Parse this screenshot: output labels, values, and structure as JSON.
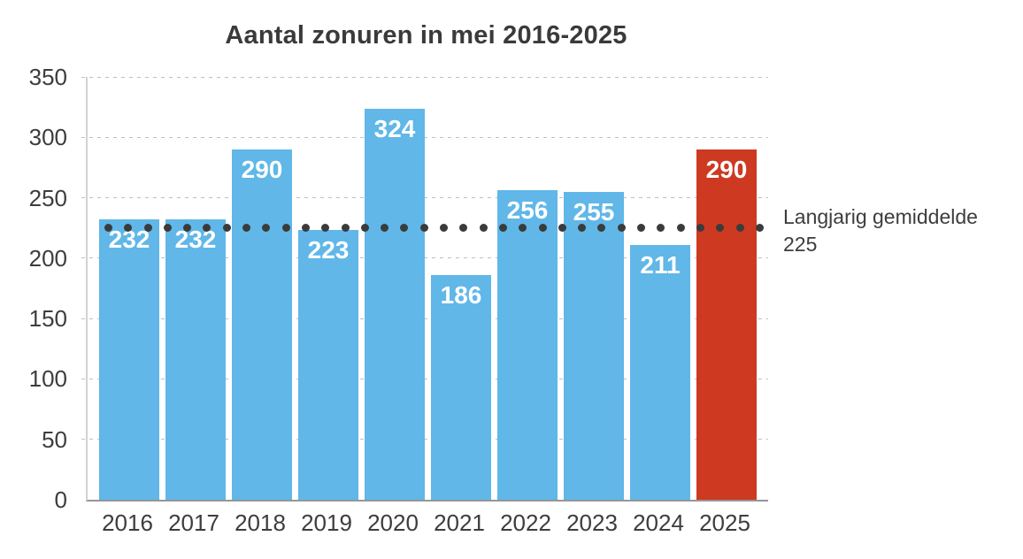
{
  "chart_data": {
    "type": "bar",
    "title": "Aantal zonuren in mei 2016-2025",
    "categories": [
      "2016",
      "2017",
      "2018",
      "2019",
      "2020",
      "2021",
      "2022",
      "2023",
      "2024",
      "2025"
    ],
    "values": [
      232,
      232,
      290,
      223,
      324,
      186,
      256,
      255,
      211,
      290
    ],
    "highlight_category": "2025",
    "yticks": [
      0,
      50,
      100,
      150,
      200,
      250,
      300,
      350
    ],
    "ylim": [
      0,
      350
    ],
    "xlabel": "",
    "ylabel": "",
    "grid": "horizontal-dashed",
    "legend": "none",
    "reference_line": {
      "value": 225,
      "label": "Langjarig gemiddelde",
      "value_text": "225",
      "style": "dotted",
      "label_position": "right"
    },
    "colors": {
      "bar": "#60B7E8",
      "highlight_bar": "#CD3A21",
      "reference_dot": "#3B3B3B",
      "grid": "#BFBFBF",
      "text": "#3D3D3D",
      "value_label_text": "#FFFFFF"
    }
  }
}
